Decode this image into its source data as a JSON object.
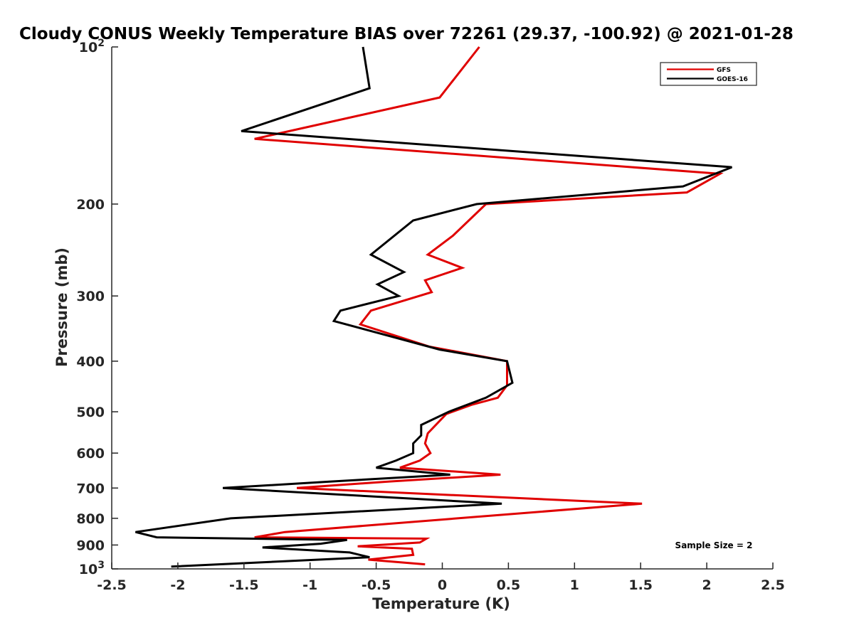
{
  "chart_data": {
    "type": "line",
    "title": "Cloudy CONUS Weekly Temperature BIAS over 72261 (29.37, -100.92) @ 2021-01-28",
    "xlabel": "Temperature (K)",
    "ylabel": "Pressure (mb)",
    "xlim": [
      -2.5,
      2.5
    ],
    "ylim": [
      100,
      1000
    ],
    "y_scale": "log",
    "y_reversed": true,
    "x_ticks": [
      -2.5,
      -2,
      -1.5,
      -1,
      -0.5,
      0,
      0.5,
      1,
      1.5,
      2,
      2.5
    ],
    "x_tick_labels": [
      "-2.5",
      "-2",
      "-1.5",
      "-1",
      "-0.5",
      "0",
      "0.5",
      "1",
      "1.5",
      "2",
      "2.5"
    ],
    "y_ticks": [
      {
        "value": 100,
        "label": "10",
        "sup": "2"
      },
      {
        "value": 200,
        "label": "200"
      },
      {
        "value": 300,
        "label": "300"
      },
      {
        "value": 400,
        "label": "400"
      },
      {
        "value": 500,
        "label": "500"
      },
      {
        "value": 600,
        "label": "600"
      },
      {
        "value": 700,
        "label": "700"
      },
      {
        "value": 800,
        "label": "800"
      },
      {
        "value": 900,
        "label": "900"
      },
      {
        "value": 1000,
        "label": "10",
        "sup": "3"
      }
    ],
    "grid": false,
    "legend_position": "top-right",
    "annotation": "Sample Size = 2",
    "series": [
      {
        "name": "GFS",
        "color": "#e00000",
        "points": [
          [
            0.28,
            100
          ],
          [
            -0.02,
            125
          ],
          [
            -1.42,
            150
          ],
          [
            2.1,
            175
          ],
          [
            1.85,
            190
          ],
          [
            0.33,
            200
          ],
          [
            0.08,
            230
          ],
          [
            -0.11,
            250
          ],
          [
            0.15,
            265
          ],
          [
            -0.13,
            280
          ],
          [
            -0.08,
            295
          ],
          [
            -0.54,
            320
          ],
          [
            -0.62,
            340
          ],
          [
            -0.1,
            375
          ],
          [
            0.49,
            400
          ],
          [
            0.49,
            445
          ],
          [
            0.42,
            470
          ],
          [
            0.22,
            485
          ],
          [
            0.03,
            505
          ],
          [
            -0.11,
            550
          ],
          [
            -0.13,
            575
          ],
          [
            -0.09,
            600
          ],
          [
            -0.17,
            620
          ],
          [
            -0.32,
            640
          ],
          [
            0.44,
            660
          ],
          [
            -0.4,
            680
          ],
          [
            -1.1,
            700
          ],
          [
            1.51,
            750
          ],
          [
            -1.19,
            850
          ],
          [
            -1.42,
            870
          ],
          [
            -0.12,
            875
          ],
          [
            -0.17,
            890
          ],
          [
            -0.64,
            905
          ],
          [
            -0.23,
            915
          ],
          [
            -0.22,
            940
          ],
          [
            -0.56,
            960
          ],
          [
            -0.13,
            980
          ]
        ]
      },
      {
        "name": "GOES-16",
        "color": "#000000",
        "points": [
          [
            -0.6,
            100
          ],
          [
            -0.55,
            120
          ],
          [
            -1.52,
            145
          ],
          [
            2.19,
            170
          ],
          [
            1.82,
            185
          ],
          [
            0.26,
            200
          ],
          [
            -0.22,
            215
          ],
          [
            -0.54,
            250
          ],
          [
            -0.29,
            270
          ],
          [
            -0.49,
            285
          ],
          [
            -0.33,
            300
          ],
          [
            -0.77,
            320
          ],
          [
            -0.82,
            335
          ],
          [
            -0.02,
            380
          ],
          [
            0.49,
            400
          ],
          [
            0.53,
            440
          ],
          [
            0.33,
            470
          ],
          [
            0.05,
            500
          ],
          [
            -0.16,
            530
          ],
          [
            -0.16,
            555
          ],
          [
            -0.22,
            575
          ],
          [
            -0.22,
            600
          ],
          [
            -0.35,
            620
          ],
          [
            -0.5,
            640
          ],
          [
            0.06,
            660
          ],
          [
            -0.84,
            680
          ],
          [
            -1.66,
            700
          ],
          [
            0.45,
            750
          ],
          [
            -1.6,
            800
          ],
          [
            -2.32,
            850
          ],
          [
            -2.16,
            870
          ],
          [
            -0.72,
            880
          ],
          [
            -0.92,
            895
          ],
          [
            -1.36,
            910
          ],
          [
            -0.7,
            930
          ],
          [
            -0.55,
            950
          ],
          [
            -2.05,
            990
          ]
        ]
      }
    ]
  }
}
